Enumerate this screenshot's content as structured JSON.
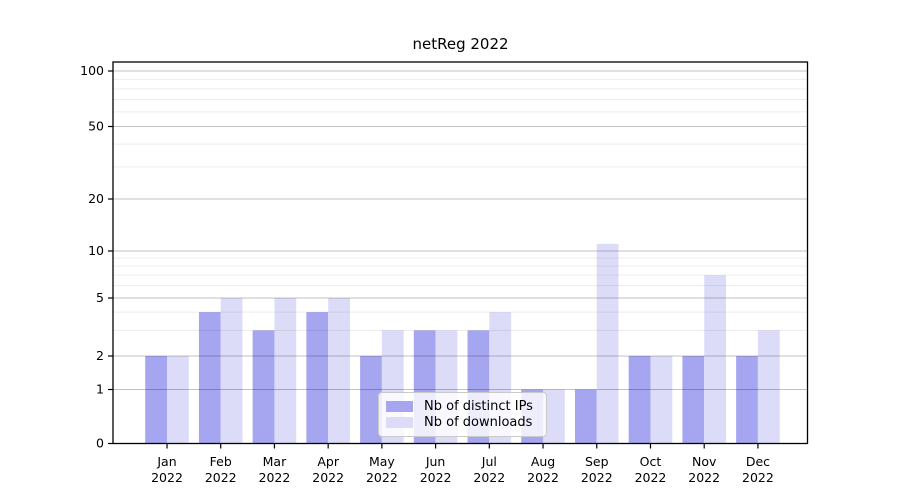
{
  "chart_data": {
    "type": "bar",
    "title": "netReg 2022",
    "categories": [
      "Jan",
      "Feb",
      "Mar",
      "Apr",
      "May",
      "Jun",
      "Jul",
      "Aug",
      "Sep",
      "Oct",
      "Nov",
      "Dec"
    ],
    "x_tick_second_line": "2022",
    "series": [
      {
        "name": "Nb of distinct IPs",
        "color": "#a6a6f0",
        "values": [
          2,
          4,
          3,
          4,
          2,
          3,
          3,
          1,
          1,
          2,
          2,
          2
        ]
      },
      {
        "name": "Nb of downloads",
        "color": "#dcdcf8",
        "values": [
          2,
          5,
          5,
          5,
          3,
          3,
          4,
          1,
          11,
          2,
          7,
          3
        ]
      }
    ],
    "yaxis": {
      "scale": "log-like (0 baseline, decades compressed)",
      "ticks": [
        0,
        1,
        2,
        5,
        10,
        20,
        50,
        100
      ],
      "minor_gridlines": [
        3,
        4,
        6,
        7,
        8,
        9,
        30,
        40,
        60,
        70,
        80,
        90
      ],
      "range": [
        0,
        110
      ]
    },
    "grid": "horizontal",
    "legend_position": "lower center",
    "colors": {
      "major_grid": "#c6c6c6",
      "minor_grid": "#ededed",
      "axis_frame": "#000000"
    }
  }
}
